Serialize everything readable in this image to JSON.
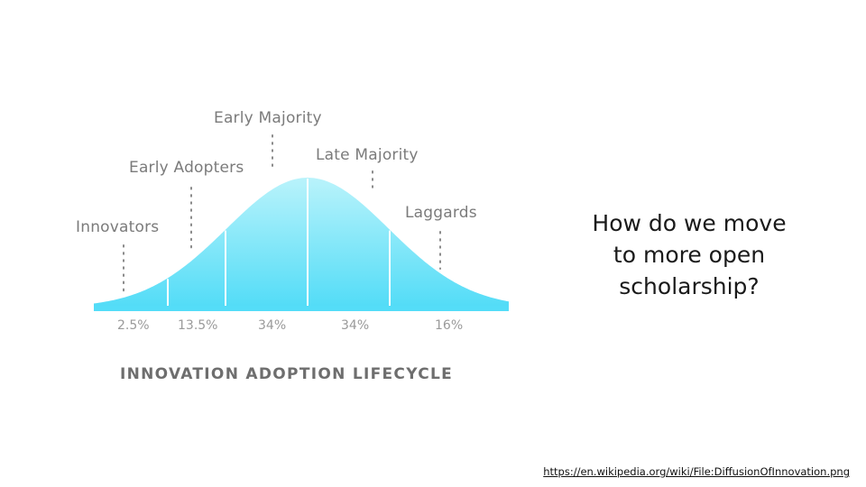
{
  "diagram": {
    "title": "INNOVATION ADOPTION LIFECYCLE",
    "segments": [
      {
        "label": "Innovators",
        "percent": "2.5%"
      },
      {
        "label": "Early Adopters",
        "percent": "13.5%"
      },
      {
        "label": "Early Majority",
        "percent": "34%"
      },
      {
        "label": "Late Majority",
        "percent": "34%"
      },
      {
        "label": "Laggards",
        "percent": "16%"
      }
    ],
    "colors": {
      "curve_top": "#b9f3fb",
      "curve_bottom": "#52dcf7",
      "baseline": "#54ddf8",
      "divider": "#ffffff"
    }
  },
  "question": "How do we move to more open scholarship?",
  "source_link": "https://en.wikipedia.org/wiki/File:DiffusionOfInnovation.png"
}
